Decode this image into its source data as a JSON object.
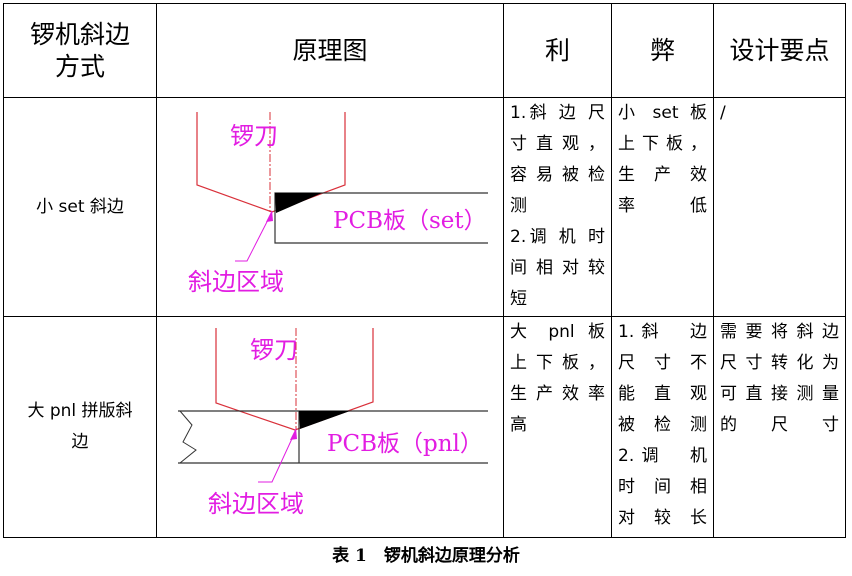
{
  "table": {
    "headers": [
      "锣机斜边\n方式",
      "原理图",
      "利",
      "弊",
      "设计要点"
    ],
    "rows": [
      {
        "method": "小 set 斜边",
        "diagram": {
          "tool_label": "锣刀",
          "board_label": "PCB板（set）",
          "bevel_label": "斜边区域"
        },
        "pros": [
          "1.斜 边 尺",
          "寸直观，",
          "容易被检",
          "测",
          "2.调 机 时",
          "间相对较",
          "短"
        ],
        "cons": [
          "小 set 板",
          "上下板，",
          "生 产 效",
          "率低"
        ],
        "design": [
          "/"
        ]
      },
      {
        "method": "大 pnl 拼版斜\n边",
        "diagram": {
          "tool_label": "锣刀",
          "board_label": "PCB板（pnl）",
          "bevel_label": "斜边区域"
        },
        "pros": [
          "大 pnl 板",
          "上下板，",
          "生产效率",
          "高"
        ],
        "cons": [
          "1.斜　边",
          "尺 寸 不",
          "能 直 观",
          "被检测",
          "2.调　机",
          "时 间 相",
          "对较长"
        ],
        "design": [
          "需要将斜边",
          "尺寸转化为",
          "可直接测量",
          "的尺寸"
        ]
      }
    ]
  },
  "caption": "表 1　锣机斜边原理分析",
  "colors": {
    "tool_line": "#d9303a",
    "label": "#e21de2",
    "bevel_fill": "#000000"
  }
}
